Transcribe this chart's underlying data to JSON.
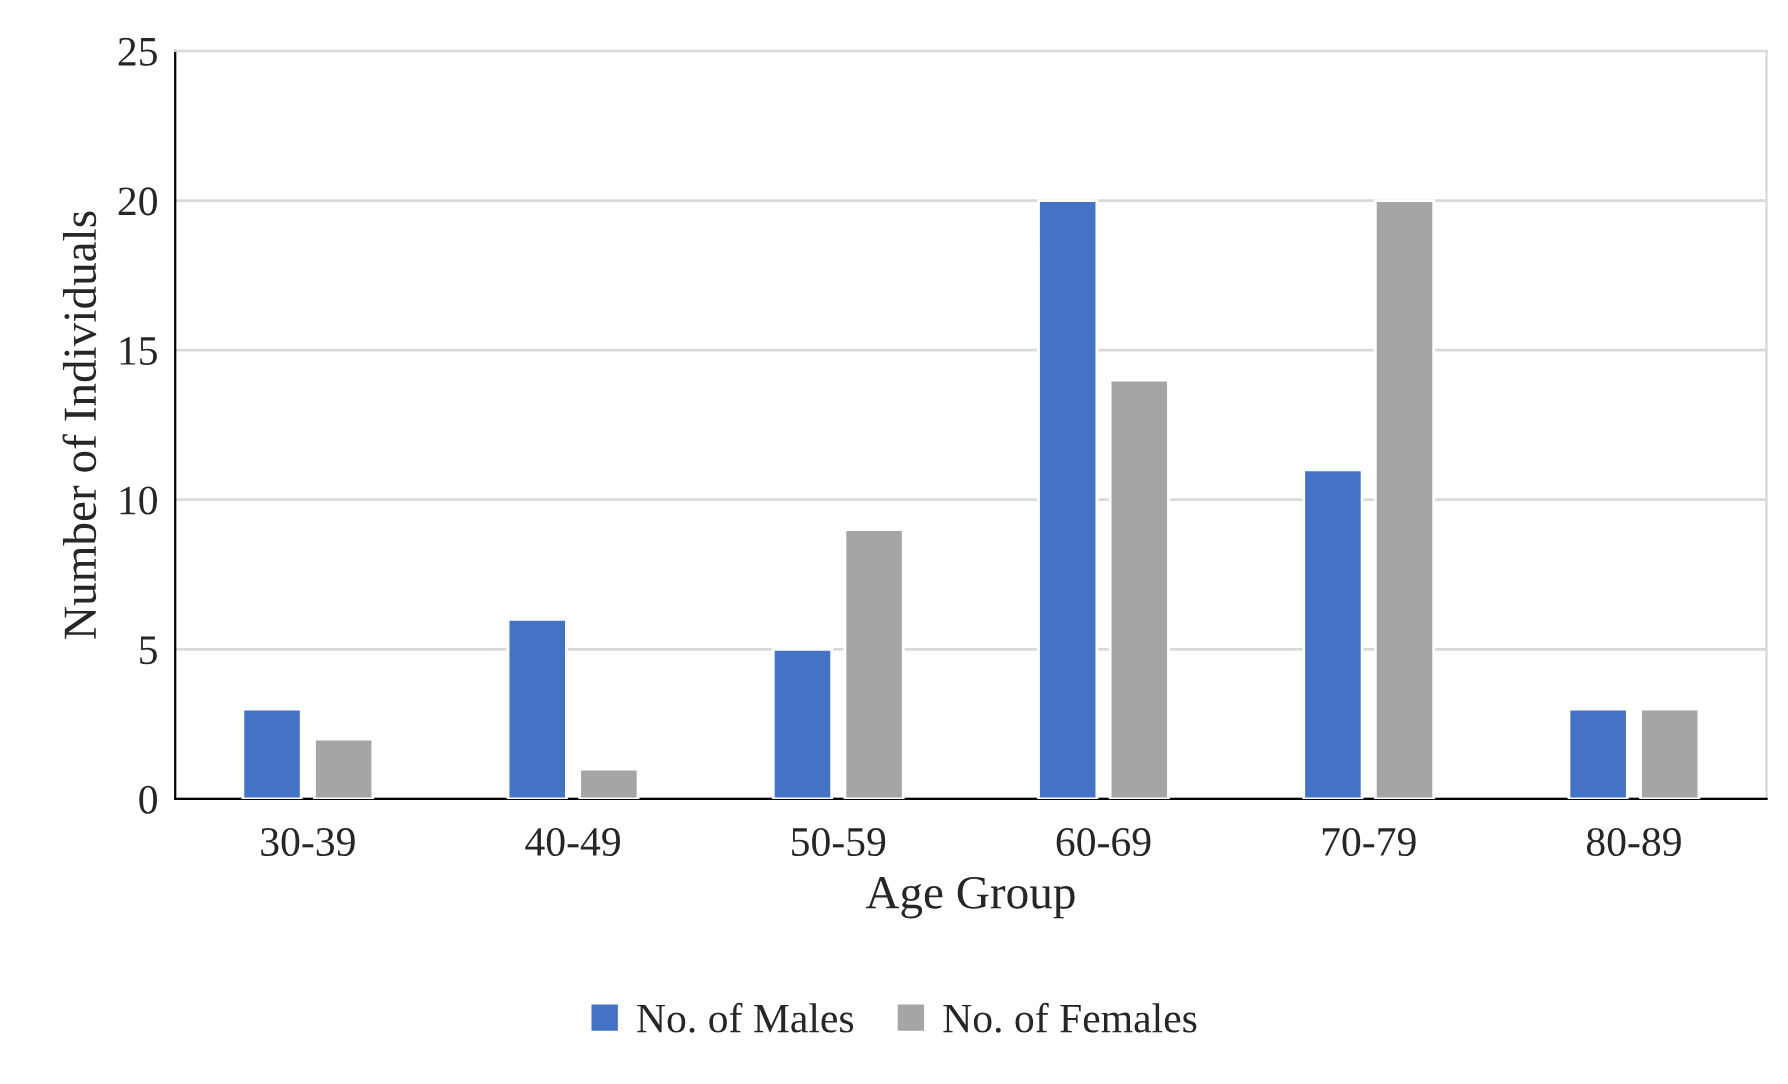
{
  "chart_data": {
    "type": "bar",
    "xlabel": "Age Group",
    "ylabel": "Number of Individuals",
    "categories": [
      "30-39",
      "40-49",
      "50-59",
      "60-69",
      "70-79",
      "80-89"
    ],
    "series": [
      {
        "name": "No. of Males",
        "color": "#4472c4",
        "values": [
          3,
          6,
          5,
          20,
          11,
          3
        ]
      },
      {
        "name": "No. of Females",
        "color": "#a5a5a5",
        "values": [
          2,
          1,
          9,
          14,
          20,
          3
        ]
      }
    ],
    "ylim": [
      0,
      25
    ],
    "yticks": [
      0,
      5,
      10,
      15,
      20,
      25
    ],
    "grid": "y",
    "legend": "bottom"
  }
}
